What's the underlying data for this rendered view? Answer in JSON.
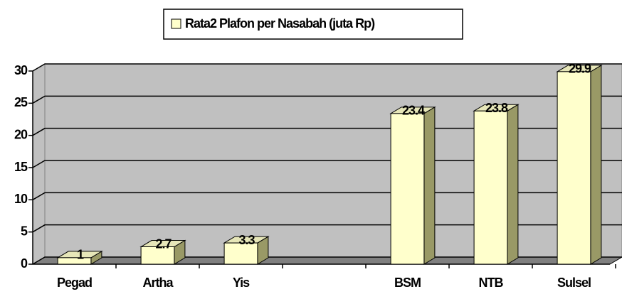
{
  "chart_data": {
    "type": "bar",
    "series": [
      {
        "name": "Rata2 Plafon per Nasabah (juta Rp)",
        "color": "#ffffcc",
        "values": [
          1,
          2.7,
          3.3,
          null,
          23.4,
          23.8,
          29.9
        ]
      }
    ],
    "categories": [
      "Pegad",
      "Artha",
      "Yis",
      null,
      "BSM",
      "NTB",
      "Sulsel"
    ],
    "ylim": [
      0,
      30
    ],
    "yticks": [
      0,
      5,
      10,
      15,
      20,
      25,
      30
    ],
    "grid": true,
    "legend": "top"
  }
}
